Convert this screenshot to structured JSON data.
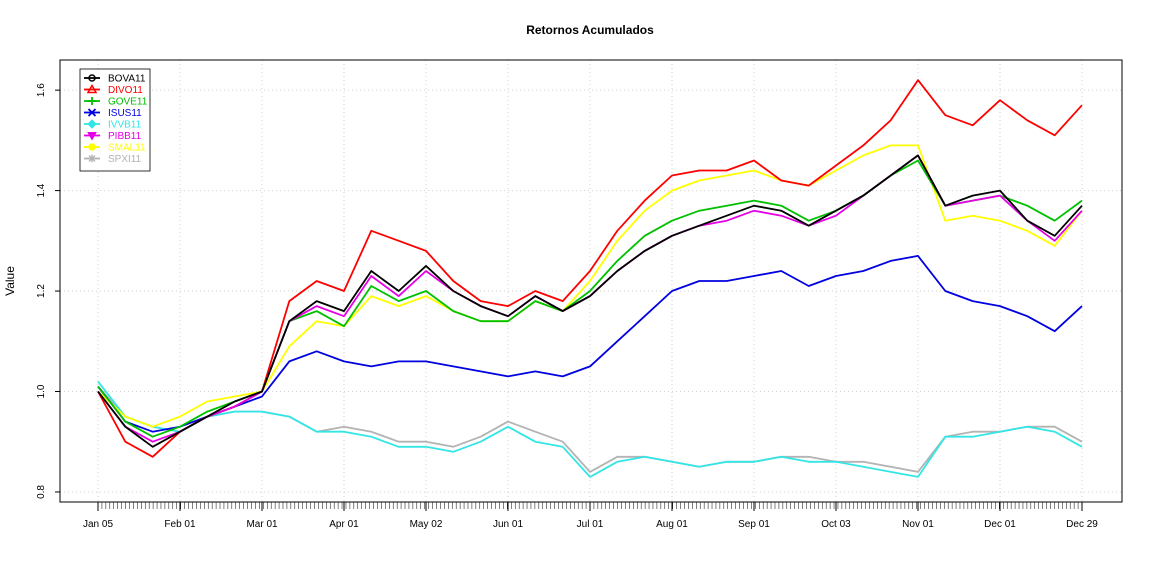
{
  "chart_data": {
    "type": "line",
    "title": "Retornos Acumulados",
    "xlabel": "",
    "ylabel": "Value",
    "ylim": [
      0.78,
      1.66
    ],
    "grid": true,
    "legend_position": "top-left",
    "x_tick_labels": [
      "Jan 05",
      "Feb 01",
      "Mar 01",
      "Apr 01",
      "May 02",
      "Jun 01",
      "Jul 01",
      "Aug 01",
      "Sep 01",
      "Oct 03",
      "Nov 01",
      "Dec 01",
      "Dec 29"
    ],
    "y_ticks": [
      0.8,
      1.0,
      1.2,
      1.4,
      1.6
    ],
    "y_tick_labels": [
      "0.8",
      "1.0",
      "1.2",
      "1.4",
      "1.6"
    ],
    "x": [
      "Jan 05",
      "Jan 15",
      "Jan 25",
      "Feb 01",
      "Feb 10",
      "Feb 20",
      "Mar 01",
      "Mar 10",
      "Mar 20",
      "Apr 01",
      "Apr 10",
      "Apr 20",
      "May 02",
      "May 10",
      "May 20",
      "Jun 01",
      "Jun 10",
      "Jun 20",
      "Jul 01",
      "Jul 10",
      "Jul 20",
      "Aug 01",
      "Aug 10",
      "Aug 20",
      "Sep 01",
      "Sep 10",
      "Sep 20",
      "Oct 03",
      "Oct 10",
      "Oct 20",
      "Nov 01",
      "Nov 10",
      "Nov 20",
      "Dec 01",
      "Dec 10",
      "Dec 20",
      "Dec 29"
    ],
    "series": [
      {
        "name": "BOVA11",
        "color": "#000000",
        "marker": "circle",
        "values": [
          1.0,
          0.93,
          0.89,
          0.92,
          0.95,
          0.98,
          1.0,
          1.14,
          1.18,
          1.16,
          1.24,
          1.2,
          1.25,
          1.2,
          1.17,
          1.15,
          1.19,
          1.16,
          1.19,
          1.24,
          1.28,
          1.31,
          1.33,
          1.35,
          1.37,
          1.36,
          1.33,
          1.36,
          1.39,
          1.43,
          1.47,
          1.37,
          1.39,
          1.4,
          1.34,
          1.31,
          1.37
        ]
      },
      {
        "name": "DIVO11",
        "color": "#ff0000",
        "marker": "triangle",
        "values": [
          1.0,
          0.9,
          0.87,
          0.92,
          0.95,
          0.97,
          1.0,
          1.18,
          1.22,
          1.2,
          1.32,
          1.3,
          1.28,
          1.22,
          1.18,
          1.17,
          1.2,
          1.18,
          1.24,
          1.32,
          1.38,
          1.43,
          1.44,
          1.44,
          1.46,
          1.42,
          1.41,
          1.45,
          1.49,
          1.54,
          1.62,
          1.55,
          1.53,
          1.58,
          1.54,
          1.51,
          1.57
        ]
      },
      {
        "name": "GOVE11",
        "color": "#00c000",
        "marker": "plus",
        "values": [
          1.01,
          0.94,
          0.91,
          0.93,
          0.96,
          0.98,
          1.0,
          1.14,
          1.16,
          1.13,
          1.21,
          1.18,
          1.2,
          1.16,
          1.14,
          1.14,
          1.18,
          1.16,
          1.2,
          1.26,
          1.31,
          1.34,
          1.36,
          1.37,
          1.38,
          1.37,
          1.34,
          1.36,
          1.39,
          1.43,
          1.46,
          1.37,
          1.38,
          1.39,
          1.37,
          1.34,
          1.38
        ]
      },
      {
        "name": "ISUS11",
        "color": "#0000e0",
        "marker": "x",
        "values": [
          1.01,
          0.94,
          0.92,
          0.93,
          0.95,
          0.97,
          0.99,
          1.06,
          1.08,
          1.06,
          1.05,
          1.06,
          1.06,
          1.05,
          1.04,
          1.03,
          1.04,
          1.03,
          1.05,
          1.1,
          1.15,
          1.2,
          1.22,
          1.22,
          1.23,
          1.24,
          1.21,
          1.23,
          1.24,
          1.26,
          1.27,
          1.2,
          1.18,
          1.17,
          1.15,
          1.12,
          1.17
        ]
      },
      {
        "name": "IVVB11",
        "color": "#33e6e6",
        "marker": "diamond",
        "values": [
          1.02,
          0.95,
          0.93,
          0.92,
          0.95,
          0.96,
          0.96,
          0.95,
          0.92,
          0.92,
          0.91,
          0.89,
          0.89,
          0.88,
          0.9,
          0.93,
          0.9,
          0.89,
          0.83,
          0.86,
          0.87,
          0.86,
          0.85,
          0.86,
          0.86,
          0.87,
          0.86,
          0.86,
          0.85,
          0.84,
          0.83,
          0.91,
          0.91,
          0.92,
          0.93,
          0.92,
          0.89
        ]
      },
      {
        "name": "PIBB11",
        "color": "#e600e6",
        "marker": "triangle-down",
        "values": [
          1.0,
          0.93,
          0.9,
          0.92,
          0.95,
          0.97,
          1.0,
          1.14,
          1.17,
          1.15,
          1.23,
          1.19,
          1.24,
          1.2,
          1.17,
          1.15,
          1.19,
          1.16,
          1.19,
          1.24,
          1.28,
          1.31,
          1.33,
          1.34,
          1.36,
          1.35,
          1.33,
          1.35,
          1.39,
          1.43,
          1.47,
          1.37,
          1.38,
          1.39,
          1.34,
          1.3,
          1.36
        ]
      },
      {
        "name": "SMAL11",
        "color": "#ffff00",
        "marker": "circle-filled",
        "values": [
          1.0,
          0.95,
          0.93,
          0.95,
          0.98,
          0.99,
          1.0,
          1.09,
          1.14,
          1.13,
          1.19,
          1.17,
          1.19,
          1.16,
          1.14,
          1.14,
          1.18,
          1.16,
          1.22,
          1.3,
          1.36,
          1.4,
          1.42,
          1.43,
          1.44,
          1.42,
          1.41,
          1.44,
          1.47,
          1.49,
          1.49,
          1.34,
          1.35,
          1.34,
          1.32,
          1.29,
          1.36
        ]
      },
      {
        "name": "SPXI11",
        "color": "#b3b3b3",
        "marker": "star",
        "values": [
          1.01,
          0.95,
          0.93,
          0.92,
          0.95,
          0.96,
          0.96,
          0.95,
          0.92,
          0.93,
          0.92,
          0.9,
          0.9,
          0.89,
          0.91,
          0.94,
          0.92,
          0.9,
          0.84,
          0.87,
          0.87,
          0.86,
          0.85,
          0.86,
          0.86,
          0.87,
          0.87,
          0.86,
          0.86,
          0.85,
          0.84,
          0.91,
          0.92,
          0.92,
          0.93,
          0.93,
          0.9
        ]
      }
    ]
  }
}
